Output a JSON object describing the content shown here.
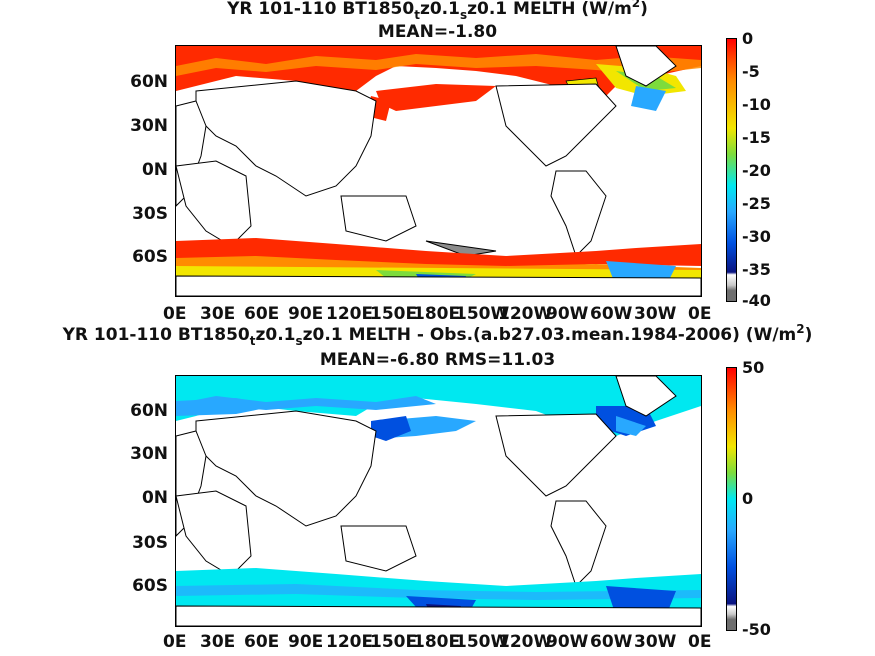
{
  "panel1": {
    "title_pre": "YR 101-110 BT1850",
    "title_sub1": "t",
    "title_mid": "z0.1",
    "title_sub2": "s",
    "title_post": "z0.1  MELTH (W/m",
    "title_sup": "2",
    "title_end": ")",
    "mean_line": "MEAN=-1.80",
    "colorbar_ticks": [
      "0",
      "-5",
      "-10",
      "-15",
      "-20",
      "-25",
      "-30",
      "-35",
      "-40"
    ]
  },
  "panel2": {
    "title_pre": "YR 101-110 BT1850",
    "title_sub1": "t",
    "title_mid": "z0.1",
    "title_sub2": "s",
    "title_post": "z0.1 MELTH - Obs.(a.b27.03.mean.1984-2006) (W/m",
    "title_sup": "2",
    "title_end": ")",
    "mean_line": "MEAN=-6.80 RMS=11.03",
    "colorbar_ticks": [
      "50",
      "0",
      "-50"
    ]
  },
  "lat_labels": [
    "60N",
    "30N",
    "0N",
    "30S",
    "60S"
  ],
  "lon_labels": [
    "0E",
    "30E",
    "60E",
    "90E",
    "120E",
    "150E",
    "180E",
    "150W",
    "120W",
    "90W",
    "60W",
    "30W",
    "0E"
  ],
  "colors": {
    "red": "#ff2a00",
    "orange": "#ff8c00",
    "yellow": "#f2e600",
    "green": "#7ddc3c",
    "cyan": "#00e8f0",
    "lightblue": "#28a8ff",
    "blue": "#0050e0",
    "navy": "#0a1480",
    "gray": "#8c8c8c"
  }
}
